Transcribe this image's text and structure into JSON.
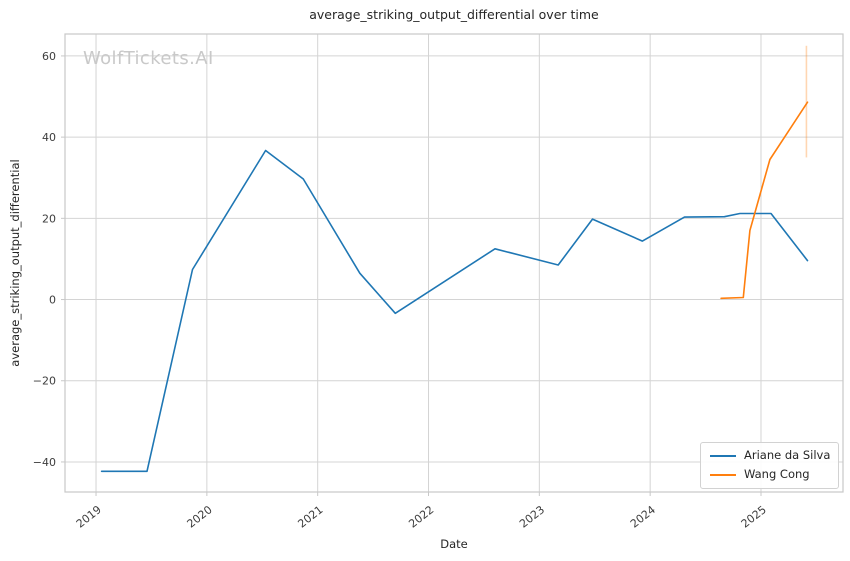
{
  "watermark": {
    "text": "WolfTickets.AI",
    "color": "#c9c9c9"
  },
  "chart_data": {
    "type": "line",
    "title": "average_striking_output_differential over time",
    "xlabel": "Date",
    "ylabel": "average_striking_output_differential",
    "grid": true,
    "legend_position": "lower right",
    "x_tick_labels": [
      "2019",
      "2020",
      "2021",
      "2022",
      "2023",
      "2024",
      "2025"
    ],
    "x_tick_values": [
      2019,
      2020,
      2021,
      2022,
      2023,
      2024,
      2025
    ],
    "y_tick_values": [
      60,
      40,
      20,
      0,
      -20,
      -40
    ],
    "xlim": [
      2018.72,
      2025.74
    ],
    "ylim": [
      -47.4,
      65.4
    ],
    "colors": {
      "grid": "#d4d4d4",
      "spine": "#c8c8c8",
      "title_text": "#262626",
      "tick_text": "#3d3d3d",
      "series_blue": "#1f77b4",
      "series_orange": "#ff7f0e"
    },
    "series": [
      {
        "name": "Ariane da Silva",
        "color": "#1f77b4",
        "x": [
          2019.05,
          2019.46,
          2019.87,
          2020.53,
          2020.87,
          2021.38,
          2021.7,
          2022.6,
          2023.17,
          2023.48,
          2023.93,
          2024.31,
          2024.67,
          2024.81,
          2025.09,
          2025.42
        ],
        "y": [
          -42.3,
          -42.3,
          7.4,
          36.7,
          29.7,
          6.5,
          -3.4,
          12.5,
          8.5,
          19.8,
          14.4,
          20.3,
          20.4,
          21.2,
          21.2,
          9.6
        ]
      },
      {
        "name": "Wang Cong",
        "color": "#ff7f0e",
        "x": [
          2024.64,
          2024.84,
          2024.9,
          2025.08,
          2025.42
        ],
        "y": [
          0.3,
          0.5,
          17.0,
          34.5,
          48.6
        ],
        "error_bar": {
          "x": 2025.41,
          "y_low": 35.0,
          "y_high": 62.5,
          "color": "rgba(255,127,14,0.32)"
        }
      }
    ]
  }
}
